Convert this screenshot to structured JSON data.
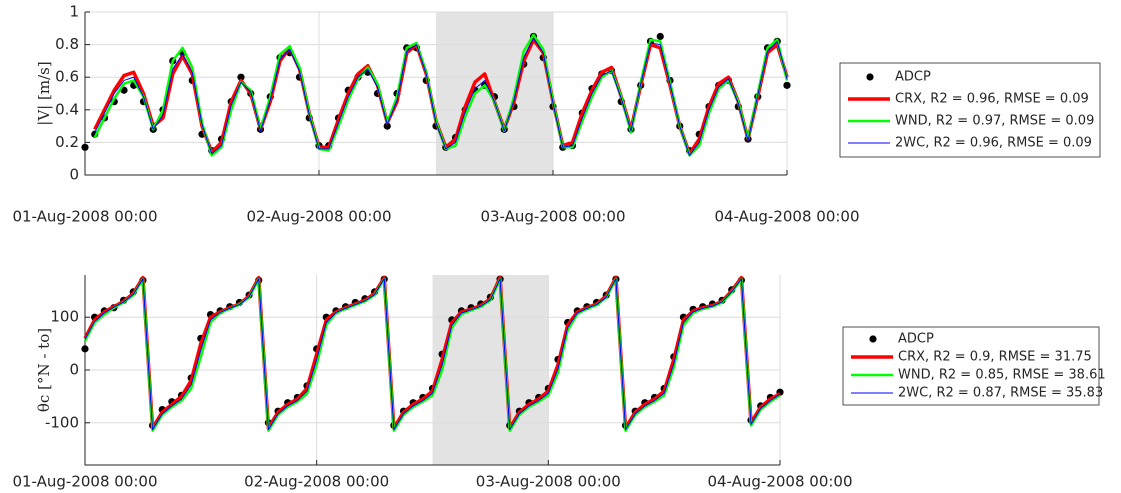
{
  "chart_data": [
    {
      "type": "line",
      "ylabel": "|V| [m/s]",
      "x": [
        0,
        1,
        2,
        3,
        4,
        5,
        6,
        7,
        8,
        9,
        10,
        11,
        12,
        13,
        14,
        15,
        16,
        17,
        18,
        19,
        20,
        21,
        22,
        23,
        24,
        25,
        26,
        27,
        28,
        29,
        30,
        31,
        32,
        33,
        34,
        35,
        36,
        37,
        38,
        39,
        40,
        41,
        42,
        43,
        44,
        45,
        46,
        47,
        48,
        49,
        50,
        51,
        52,
        53,
        54,
        55,
        56,
        57,
        58,
        59,
        60,
        61,
        62,
        63,
        64,
        65,
        66,
        67,
        68,
        69,
        70,
        71,
        72
      ],
      "xlim": [
        0,
        72
      ],
      "xticks": [
        {
          "value": 0,
          "label": "01-Aug-2008 00:00"
        },
        {
          "value": 24,
          "label": "02-Aug-2008 00:00"
        },
        {
          "value": 48,
          "label": "03-Aug-2008 00:00"
        },
        {
          "value": 72,
          "label": "04-Aug-2008 00:00"
        }
      ],
      "ylim": [
        0,
        1
      ],
      "yticks": [
        0,
        0.2,
        0.4,
        0.6,
        0.8,
        1
      ],
      "grid": true,
      "shaded": [
        36,
        48
      ],
      "legend": "outside right",
      "series": [
        {
          "name": "ADCP",
          "mode": "markers",
          "color": "#000000",
          "values": [
            0.17,
            0.25,
            0.35,
            0.45,
            0.52,
            0.55,
            0.45,
            0.28,
            0.4,
            0.7,
            0.75,
            0.58,
            0.25,
            0.15,
            0.22,
            0.45,
            0.6,
            0.5,
            0.28,
            0.48,
            0.72,
            0.75,
            0.6,
            0.35,
            0.18,
            0.18,
            0.35,
            0.52,
            0.6,
            0.63,
            0.5,
            0.3,
            0.5,
            0.78,
            0.78,
            0.58,
            0.3,
            0.17,
            0.23,
            0.4,
            0.52,
            0.55,
            0.48,
            0.28,
            0.42,
            0.68,
            0.85,
            0.72,
            0.42,
            0.17,
            0.18,
            0.38,
            0.53,
            0.62,
            0.64,
            0.45,
            0.28,
            0.55,
            0.82,
            0.85,
            0.58,
            0.3,
            0.15,
            0.25,
            0.42,
            0.55,
            0.58,
            0.42,
            0.22,
            0.48,
            0.78,
            0.82,
            0.55
          ]
        },
        {
          "name": "CRX, R2 = 0.96, RMSE = 0.09",
          "mode": "lines",
          "line_width": 3.5,
          "color": "#ff0000",
          "values": [
            null,
            0.28,
            0.4,
            0.52,
            0.61,
            0.63,
            0.5,
            0.3,
            0.35,
            0.62,
            0.73,
            0.62,
            0.3,
            0.14,
            0.2,
            0.45,
            0.58,
            0.5,
            0.28,
            0.45,
            0.7,
            0.78,
            0.65,
            0.38,
            0.17,
            0.17,
            0.34,
            0.5,
            0.62,
            0.67,
            0.55,
            0.32,
            0.45,
            0.75,
            0.8,
            0.62,
            0.33,
            0.17,
            0.22,
            0.42,
            0.57,
            0.62,
            0.45,
            0.28,
            0.45,
            0.7,
            0.83,
            0.75,
            0.45,
            0.18,
            0.2,
            0.38,
            0.52,
            0.63,
            0.66,
            0.48,
            0.28,
            0.55,
            0.8,
            0.78,
            0.55,
            0.3,
            0.13,
            0.22,
            0.42,
            0.56,
            0.6,
            0.45,
            0.22,
            0.48,
            0.75,
            0.8,
            0.6
          ]
        },
        {
          "name": "WND, R2 = 0.97, RMSE = 0.09",
          "mode": "lines",
          "line_width": 2.5,
          "color": "#00ff00",
          "values": [
            null,
            0.23,
            0.35,
            0.47,
            0.56,
            0.58,
            0.48,
            0.28,
            0.4,
            0.7,
            0.78,
            0.66,
            0.32,
            0.12,
            0.17,
            0.4,
            0.57,
            0.52,
            0.28,
            0.48,
            0.74,
            0.79,
            0.66,
            0.38,
            0.16,
            0.15,
            0.3,
            0.46,
            0.59,
            0.66,
            0.56,
            0.32,
            0.48,
            0.78,
            0.81,
            0.63,
            0.33,
            0.16,
            0.18,
            0.36,
            0.5,
            0.55,
            0.45,
            0.27,
            0.48,
            0.76,
            0.86,
            0.77,
            0.45,
            0.17,
            0.17,
            0.33,
            0.48,
            0.6,
            0.64,
            0.48,
            0.26,
            0.57,
            0.83,
            0.82,
            0.57,
            0.3,
            0.12,
            0.18,
            0.38,
            0.53,
            0.58,
            0.45,
            0.22,
            0.5,
            0.78,
            0.83,
            0.58
          ]
        },
        {
          "name": "2WC, R2 = 0.96, RMSE = 0.09",
          "mode": "lines",
          "line_width": 1,
          "color": "#0000ff",
          "values": [
            null,
            0.26,
            0.38,
            0.5,
            0.58,
            0.6,
            0.48,
            0.28,
            0.37,
            0.65,
            0.74,
            0.63,
            0.31,
            0.13,
            0.18,
            0.43,
            0.57,
            0.51,
            0.27,
            0.46,
            0.71,
            0.77,
            0.64,
            0.37,
            0.16,
            0.16,
            0.32,
            0.48,
            0.6,
            0.65,
            0.54,
            0.31,
            0.46,
            0.76,
            0.8,
            0.62,
            0.32,
            0.16,
            0.2,
            0.39,
            0.53,
            0.58,
            0.45,
            0.27,
            0.46,
            0.72,
            0.84,
            0.75,
            0.44,
            0.17,
            0.18,
            0.35,
            0.5,
            0.61,
            0.64,
            0.47,
            0.27,
            0.56,
            0.81,
            0.8,
            0.56,
            0.3,
            0.12,
            0.2,
            0.4,
            0.54,
            0.59,
            0.44,
            0.21,
            0.49,
            0.76,
            0.82,
            0.59
          ]
        }
      ]
    },
    {
      "type": "line",
      "ylabel": "θc [°N - to]",
      "x": [
        0,
        1,
        2,
        3,
        4,
        5,
        6,
        7,
        8,
        9,
        10,
        11,
        12,
        13,
        14,
        15,
        16,
        17,
        18,
        19,
        20,
        21,
        22,
        23,
        24,
        25,
        26,
        27,
        28,
        29,
        30,
        31,
        32,
        33,
        34,
        35,
        36,
        37,
        38,
        39,
        40,
        41,
        42,
        43,
        44,
        45,
        46,
        47,
        48,
        49,
        50,
        51,
        52,
        53,
        54,
        55,
        56,
        57,
        58,
        59,
        60,
        61,
        62,
        63,
        64,
        65,
        66,
        67,
        68,
        69,
        70,
        71,
        72
      ],
      "xlim": [
        0,
        72
      ],
      "xticks": [
        {
          "value": 0,
          "label": "01-Aug-2008 00:00"
        },
        {
          "value": 24,
          "label": "02-Aug-2008 00:00"
        },
        {
          "value": 48,
          "label": "03-Aug-2008 00:00"
        },
        {
          "value": 72,
          "label": "04-Aug-2008 00:00"
        }
      ],
      "ylim": [
        -180,
        180
      ],
      "yticks": [
        -100,
        0,
        100
      ],
      "grid": true,
      "shaded": [
        36,
        48
      ],
      "legend": "outside right",
      "series": [
        {
          "name": "ADCP",
          "mode": "markers",
          "color": "#000000",
          "values": [
            40,
            100,
            112,
            118,
            132,
            148,
            170,
            -105,
            -75,
            -60,
            -48,
            -15,
            60,
            105,
            112,
            120,
            128,
            142,
            170,
            -100,
            -78,
            -62,
            -52,
            -30,
            40,
            100,
            112,
            120,
            128,
            135,
            148,
            172,
            -105,
            -78,
            -62,
            -52,
            -35,
            30,
            95,
            112,
            118,
            125,
            138,
            172,
            -105,
            -78,
            -62,
            -52,
            -35,
            20,
            90,
            112,
            120,
            128,
            142,
            172,
            -105,
            -78,
            -62,
            -52,
            -35,
            25,
            100,
            115,
            120,
            125,
            132,
            152,
            170,
            -95,
            -68,
            -52,
            -42
          ]
        },
        {
          "name": "CRX, R2 = 0.9, RMSE = 31.75",
          "mode": "lines",
          "line_width": 3.5,
          "color": "#ff0000",
          "values": [
            60,
            95,
            110,
            120,
            130,
            145,
            175,
            -110,
            -80,
            -65,
            -50,
            -20,
            50,
            100,
            110,
            118,
            125,
            140,
            175,
            -110,
            -80,
            -65,
            -55,
            -35,
            30,
            95,
            110,
            118,
            125,
            132,
            145,
            175,
            -110,
            -80,
            -65,
            -55,
            -40,
            20,
            90,
            110,
            115,
            122,
            135,
            175,
            -110,
            -80,
            -65,
            -55,
            -40,
            10,
            85,
            110,
            118,
            125,
            140,
            175,
            -110,
            -80,
            -65,
            -55,
            -40,
            20,
            95,
            112,
            118,
            122,
            130,
            150,
            175,
            -100,
            -70,
            -55,
            -45
          ]
        },
        {
          "name": "WND, R2 = 0.85, RMSE = 38.61",
          "mode": "lines",
          "line_width": 2.5,
          "color": "#00ff00",
          "values": [
            55,
            90,
            105,
            118,
            128,
            142,
            172,
            -115,
            -85,
            -70,
            -58,
            -35,
            25,
            90,
            108,
            116,
            124,
            138,
            172,
            -115,
            -85,
            -70,
            -60,
            -45,
            10,
            85,
            108,
            116,
            123,
            130,
            142,
            172,
            -115,
            -85,
            -70,
            -60,
            -48,
            0,
            80,
            106,
            113,
            120,
            132,
            172,
            -115,
            -85,
            -70,
            -60,
            -48,
            -5,
            75,
            106,
            116,
            123,
            137,
            172,
            -115,
            -85,
            -70,
            -60,
            -48,
            5,
            85,
            108,
            116,
            120,
            128,
            147,
            172,
            -105,
            -75,
            -60,
            -48
          ]
        },
        {
          "name": "2WC, R2 = 0.87, RMSE = 35.83",
          "mode": "lines",
          "line_width": 1,
          "color": "#0000ff",
          "values": [
            58,
            92,
            108,
            119,
            129,
            143,
            173,
            -113,
            -83,
            -68,
            -55,
            -28,
            38,
            95,
            109,
            117,
            124,
            139,
            173,
            -113,
            -83,
            -68,
            -58,
            -40,
            20,
            90,
            109,
            117,
            124,
            131,
            143,
            173,
            -113,
            -83,
            -68,
            -58,
            -44,
            10,
            85,
            108,
            114,
            121,
            133,
            173,
            -113,
            -83,
            -68,
            -58,
            -44,
            2,
            80,
            108,
            117,
            124,
            138,
            173,
            -113,
            -83,
            -68,
            -58,
            -44,
            12,
            90,
            110,
            117,
            121,
            129,
            148,
            173,
            -103,
            -73,
            -58,
            -46
          ]
        }
      ]
    }
  ]
}
